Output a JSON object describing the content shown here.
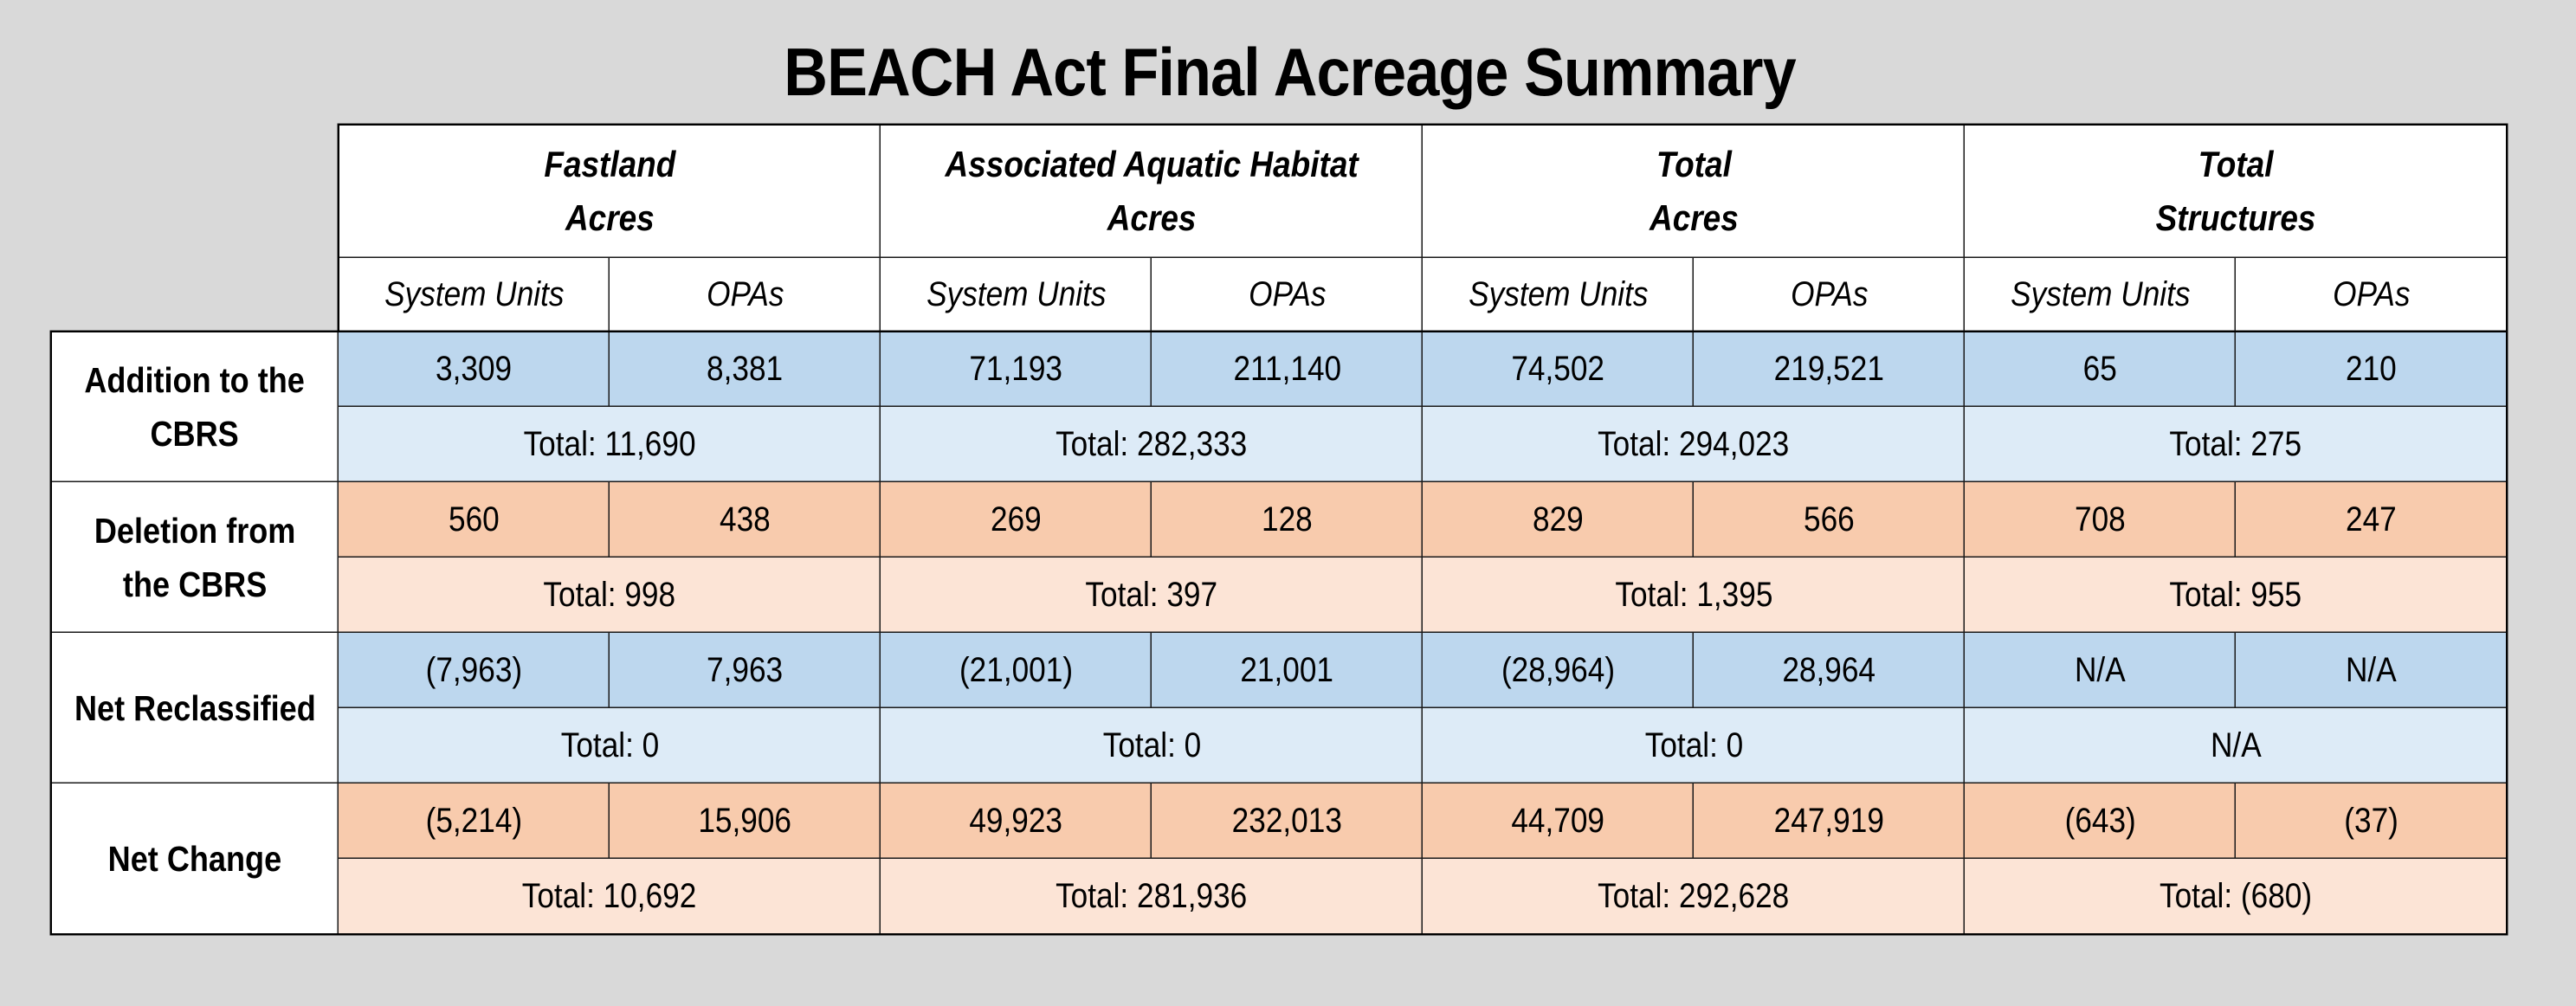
{
  "title": "BEACH Act Final Acreage Summary",
  "colors": {
    "blue_dark": "#bdd7ee",
    "blue_light": "#ddebf7",
    "orange_dark": "#f8cbad",
    "orange_light": "#fce4d6",
    "background": "#d9d9d9"
  },
  "column_groups": [
    {
      "label": "Fastland\nAcres"
    },
    {
      "label": "Associated Aquatic Habitat\nAcres"
    },
    {
      "label": "Total\nAcres"
    },
    {
      "label": "Total\nStructures"
    }
  ],
  "subcolumns": [
    "System Units",
    "OPAs",
    "System Units",
    "OPAs",
    "System Units",
    "OPAs",
    "System Units",
    "OPAs"
  ],
  "rows": [
    {
      "label": "Addition to the\nCBRS",
      "tone": "blue",
      "values": [
        "3,309",
        "8,381",
        "71,193",
        "211,140",
        "74,502",
        "219,521",
        "65",
        "210"
      ],
      "totals": [
        "Total: 11,690",
        "Total: 282,333",
        "Total: 294,023",
        "Total: 275"
      ]
    },
    {
      "label": "Deletion from\nthe CBRS",
      "tone": "orange",
      "values": [
        "560",
        "438",
        "269",
        "128",
        "829",
        "566",
        "708",
        "247"
      ],
      "totals": [
        "Total: 998",
        "Total: 397",
        "Total: 1,395",
        "Total: 955"
      ]
    },
    {
      "label": "Net Reclassified",
      "tone": "blue",
      "values": [
        "(7,963)",
        "7,963",
        "(21,001)",
        "21,001",
        "(28,964)",
        "28,964",
        "N/A",
        "N/A"
      ],
      "totals": [
        "Total: 0",
        "Total: 0",
        "Total: 0",
        "N/A"
      ]
    },
    {
      "label": "Net Change",
      "tone": "orange",
      "values": [
        "(5,214)",
        "15,906",
        "49,923",
        "232,013",
        "44,709",
        "247,919",
        "(643)",
        "(37)"
      ],
      "totals": [
        "Total: 10,692",
        "Total: 281,936",
        "Total: 292,628",
        "Total: (680)"
      ]
    }
  ]
}
